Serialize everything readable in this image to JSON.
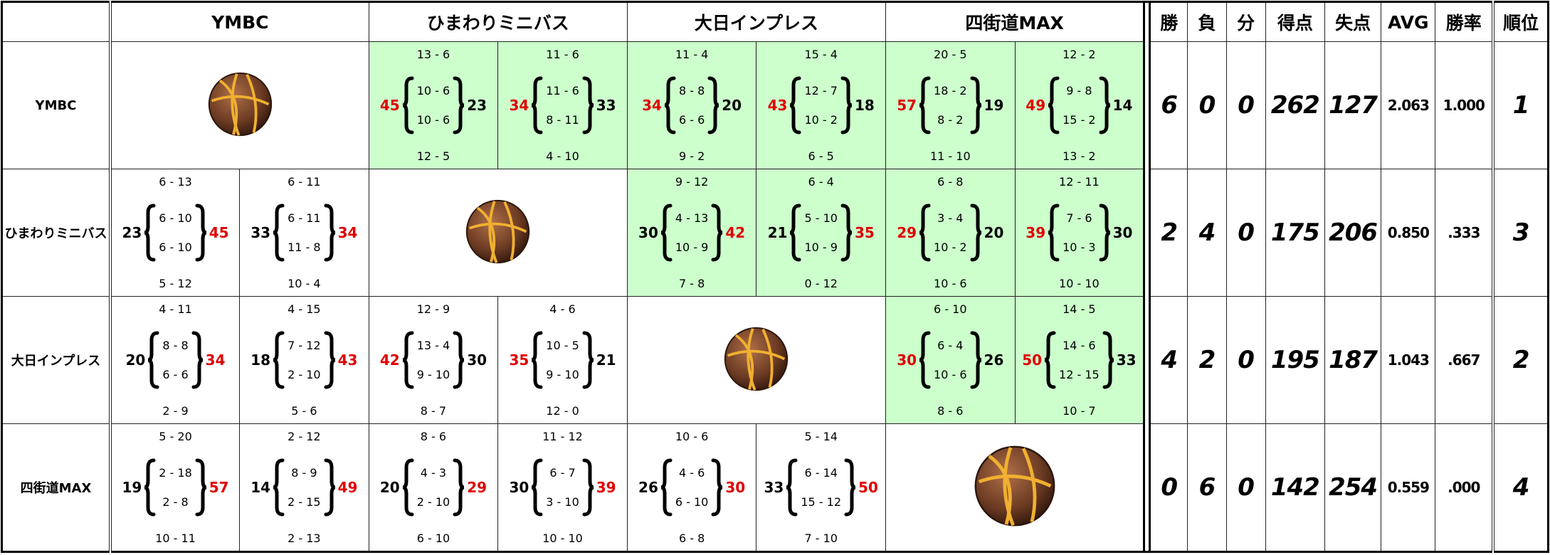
{
  "header": {
    "teams": [
      "YMBC",
      "ひまわりミニバス",
      "大日インプレス",
      "四街道MAX"
    ],
    "stats": [
      "勝",
      "負",
      "分",
      "得点",
      "失点",
      "AVG",
      "勝率",
      "順位"
    ]
  },
  "rows": [
    {
      "team": "YMBC",
      "games": [
        [
          {
            "left": 45,
            "right": 23,
            "quarters": [
              "13 - 6",
              "10 - 6",
              "10 - 6",
              "12 - 5"
            ]
          },
          {
            "left": 34,
            "right": 33,
            "quarters": [
              "11 - 6",
              "11 - 6",
              "8 - 11",
              "4 - 10"
            ]
          }
        ],
        [
          {
            "left": 34,
            "right": 20,
            "quarters": [
              "11 - 4",
              "8 - 8",
              "6 - 6",
              "9 - 2"
            ]
          },
          {
            "left": 43,
            "right": 18,
            "quarters": [
              "15 - 4",
              "12 - 7",
              "10 - 2",
              "6 - 5"
            ]
          }
        ],
        [
          {
            "left": 57,
            "right": 19,
            "quarters": [
              "20 - 5",
              "18 - 2",
              "8 - 2",
              "11 - 10"
            ]
          },
          {
            "left": 49,
            "right": 14,
            "quarters": [
              "12 - 2",
              "9 - 8",
              "15 - 2",
              "13 - 2"
            ]
          }
        ]
      ],
      "stats": [
        "6",
        "0",
        "0",
        "262",
        "127",
        "2.063",
        "1.000",
        "1"
      ]
    },
    {
      "team": "ひまわりミニバス",
      "games": [
        [
          {
            "left": 23,
            "right": 45,
            "quarters": [
              "6 - 13",
              "6 - 10",
              "6 - 10",
              "5 - 12"
            ]
          },
          {
            "left": 33,
            "right": 34,
            "quarters": [
              "6 - 11",
              "6 - 11",
              "11 - 8",
              "10 - 4"
            ]
          }
        ],
        [
          {
            "left": 30,
            "right": 42,
            "quarters": [
              "9 - 12",
              "4 - 13",
              "10 - 9",
              "7 - 8"
            ]
          },
          {
            "left": 21,
            "right": 35,
            "quarters": [
              "6 - 4",
              "5 - 10",
              "10 - 9",
              "0 - 12"
            ]
          }
        ],
        [
          {
            "left": 29,
            "right": 20,
            "quarters": [
              "6 - 8",
              "3 - 4",
              "10 - 2",
              "10 - 6"
            ]
          },
          {
            "left": 39,
            "right": 30,
            "quarters": [
              "12 - 11",
              "7 - 6",
              "10 - 3",
              "10 - 10"
            ]
          }
        ]
      ],
      "stats": [
        "2",
        "4",
        "0",
        "175",
        "206",
        "0.850",
        ".333",
        "3"
      ]
    },
    {
      "team": "大日インプレス",
      "games": [
        [
          {
            "left": 20,
            "right": 34,
            "quarters": [
              "4 - 11",
              "8 - 8",
              "6 - 6",
              "2 - 9"
            ]
          },
          {
            "left": 18,
            "right": 43,
            "quarters": [
              "4 - 15",
              "7 - 12",
              "2 - 10",
              "5 - 6"
            ]
          }
        ],
        [
          {
            "left": 42,
            "right": 30,
            "quarters": [
              "12 - 9",
              "13 - 4",
              "9 - 10",
              "8 - 7"
            ]
          },
          {
            "left": 35,
            "right": 21,
            "quarters": [
              "4 - 6",
              "10 - 5",
              "9 - 10",
              "12 - 0"
            ]
          }
        ],
        [
          {
            "left": 30,
            "right": 26,
            "quarters": [
              "6 - 10",
              "6 - 4",
              "10 - 6",
              "8 - 6"
            ]
          },
          {
            "left": 50,
            "right": 33,
            "quarters": [
              "14 - 5",
              "14 - 6",
              "12 - 15",
              "10 - 7"
            ]
          }
        ]
      ],
      "stats": [
        "4",
        "2",
        "0",
        "195",
        "187",
        "1.043",
        ".667",
        "2"
      ]
    },
    {
      "team": "四街道MAX",
      "games": [
        [
          {
            "left": 19,
            "right": 57,
            "quarters": [
              "5 - 20",
              "2 - 18",
              "2 - 8",
              "10 - 11"
            ]
          },
          {
            "left": 14,
            "right": 49,
            "quarters": [
              "2 - 12",
              "8 - 9",
              "2 - 15",
              "2 - 13"
            ]
          }
        ],
        [
          {
            "left": 20,
            "right": 29,
            "quarters": [
              "8 - 6",
              "4 - 3",
              "2 - 10",
              "6 - 10"
            ]
          },
          {
            "left": 30,
            "right": 39,
            "quarters": [
              "11 - 12",
              "6 - 7",
              "3 - 10",
              "10 - 10"
            ]
          }
        ],
        [
          {
            "left": 26,
            "right": 30,
            "quarters": [
              "10 - 6",
              "4 - 6",
              "6 - 10",
              "6 - 8"
            ]
          },
          {
            "left": 33,
            "right": 50,
            "quarters": [
              "5 - 14",
              "6 - 14",
              "15 - 12",
              "7 - 10"
            ]
          }
        ]
      ],
      "stats": [
        "0",
        "6",
        "0",
        "142",
        "254",
        "0.559",
        ".000",
        "4"
      ]
    }
  ]
}
